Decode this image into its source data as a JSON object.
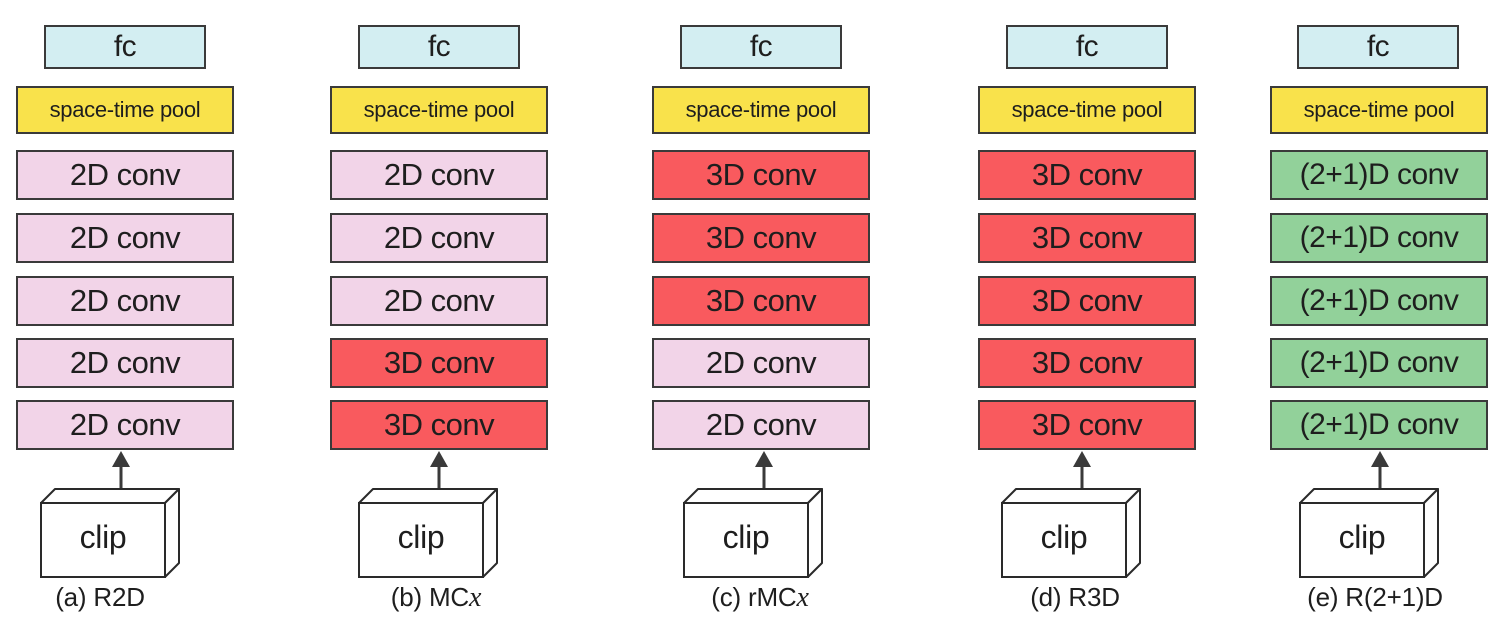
{
  "columns": [
    {
      "id": "r2d",
      "fc_label": "fc",
      "pool_label": "space-time pool",
      "layers": [
        {
          "label": "2D conv",
          "kind": "2d"
        },
        {
          "label": "2D conv",
          "kind": "2d"
        },
        {
          "label": "2D conv",
          "kind": "2d"
        },
        {
          "label": "2D conv",
          "kind": "2d"
        },
        {
          "label": "2D conv",
          "kind": "2d"
        }
      ],
      "input_label": "clip",
      "caption_prefix": "(a) R2D",
      "caption_var": ""
    },
    {
      "id": "mcx",
      "fc_label": "fc",
      "pool_label": "space-time pool",
      "layers": [
        {
          "label": "2D conv",
          "kind": "2d"
        },
        {
          "label": "2D conv",
          "kind": "2d"
        },
        {
          "label": "2D conv",
          "kind": "2d"
        },
        {
          "label": "3D conv",
          "kind": "3d"
        },
        {
          "label": "3D conv",
          "kind": "3d"
        }
      ],
      "input_label": "clip",
      "caption_prefix": "(b) MC",
      "caption_var": "x"
    },
    {
      "id": "rmcx",
      "fc_label": "fc",
      "pool_label": "space-time pool",
      "layers": [
        {
          "label": "3D conv",
          "kind": "3d"
        },
        {
          "label": "3D conv",
          "kind": "3d"
        },
        {
          "label": "3D conv",
          "kind": "3d"
        },
        {
          "label": "2D conv",
          "kind": "2d"
        },
        {
          "label": "2D conv",
          "kind": "2d"
        }
      ],
      "input_label": "clip",
      "caption_prefix": "(c) rMC",
      "caption_var": "x"
    },
    {
      "id": "r3d",
      "fc_label": "fc",
      "pool_label": "space-time pool",
      "layers": [
        {
          "label": "3D conv",
          "kind": "3d"
        },
        {
          "label": "3D conv",
          "kind": "3d"
        },
        {
          "label": "3D conv",
          "kind": "3d"
        },
        {
          "label": "3D conv",
          "kind": "3d"
        },
        {
          "label": "3D conv",
          "kind": "3d"
        }
      ],
      "input_label": "clip",
      "caption_prefix": "(d) R3D",
      "caption_var": ""
    },
    {
      "id": "r21d",
      "fc_label": "fc",
      "pool_label": "space-time pool",
      "layers": [
        {
          "label": "(2+1)D conv",
          "kind": "21d"
        },
        {
          "label": "(2+1)D conv",
          "kind": "21d"
        },
        {
          "label": "(2+1)D conv",
          "kind": "21d"
        },
        {
          "label": "(2+1)D conv",
          "kind": "21d"
        },
        {
          "label": "(2+1)D conv",
          "kind": "21d"
        }
      ],
      "input_label": "clip",
      "caption_prefix": "(e) R(2+1)D",
      "caption_var": ""
    }
  ],
  "colors": {
    "fc": "#d3eef2",
    "pool": "#f9e24b",
    "conv_2d": "#f2d4e8",
    "conv_3d": "#f95a5e",
    "conv_21d": "#92d19a",
    "stroke": "#3a3a3a"
  }
}
